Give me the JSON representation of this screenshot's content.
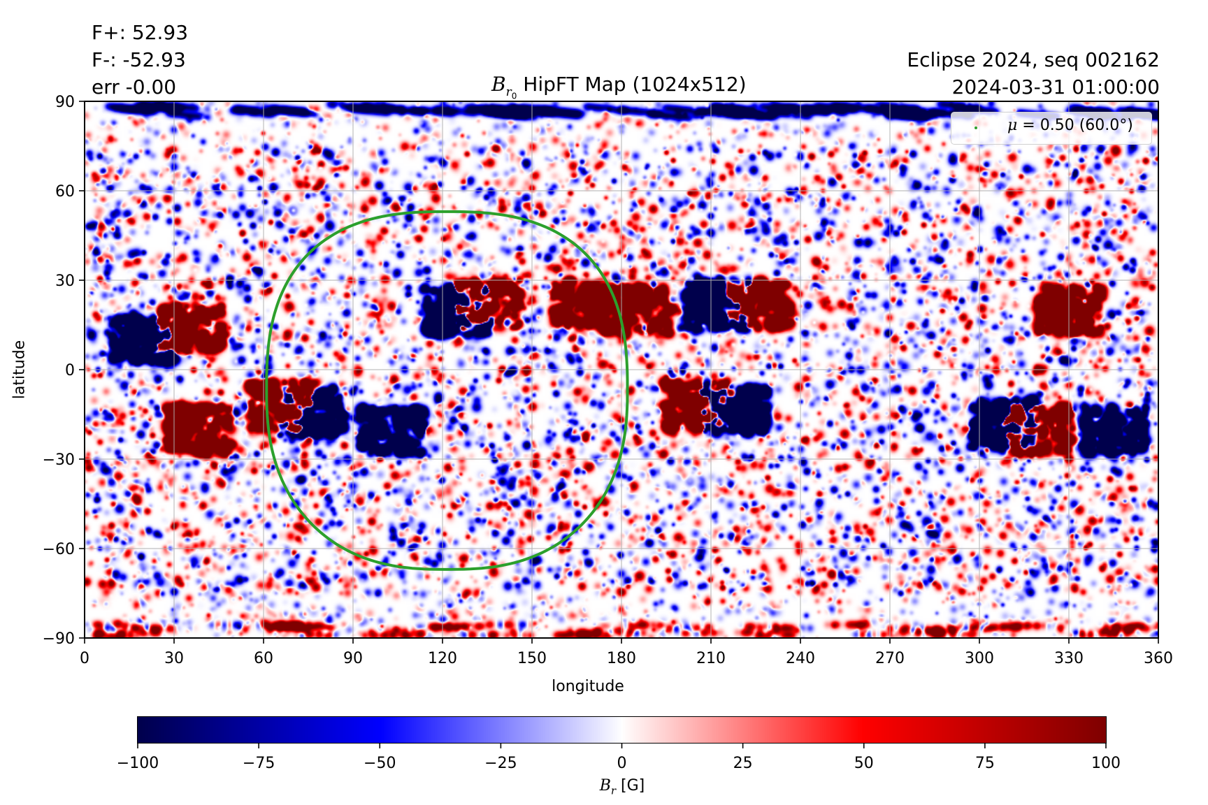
{
  "header": {
    "flux_positive": "F+: 52.93",
    "flux_negative": "F-: -52.93",
    "flux_error": "err -0.00",
    "title_main": "B",
    "title_sub": "r",
    "title_subsub": "0",
    "title_rest": " HipFT Map (1024x512)",
    "run_label": "Eclipse 2024, seq 002162",
    "timestamp": "2024-03-31 01:00:00"
  },
  "legend": {
    "symbol": "μ",
    "text": " = 0.50 (60.0°)",
    "marker_color": "#2ca02c"
  },
  "chart_data": [
    {
      "type": "heatmap",
      "title": "B_r0 HipFT Map (1024x512)",
      "xlabel": "longitude",
      "ylabel": "latitude",
      "xlim": [
        0,
        360
      ],
      "ylim": [
        -90,
        90
      ],
      "xticks": [
        0,
        30,
        60,
        90,
        120,
        150,
        180,
        210,
        240,
        270,
        300,
        330,
        360
      ],
      "yticks": [
        -90,
        -60,
        -30,
        0,
        30,
        60,
        90
      ],
      "ytick_labels": [
        "−90",
        "−60",
        "−30",
        "0",
        "30",
        "60",
        "90"
      ],
      "grid": true,
      "colormap": "seismic",
      "clim": [
        -100,
        100
      ],
      "resolution": "1024x512",
      "legend_position": "top-right",
      "contour": {
        "label": "μ = 0.50 (60.0°)",
        "color": "#2ca02c",
        "center_lon": 121,
        "center_lat": -6,
        "lon_range": [
          61,
          182
        ],
        "lat_range": [
          -67,
          53
        ]
      },
      "active_regions": [
        {
          "lon": 35,
          "lat": 14,
          "polarity": "positive"
        },
        {
          "lon": 38,
          "lat": -20,
          "polarity": "positive"
        },
        {
          "lon": 20,
          "lat": 10,
          "polarity": "negative"
        },
        {
          "lon": 76,
          "lat": -14,
          "polarity": "negative"
        },
        {
          "lon": 66,
          "lat": -12,
          "polarity": "positive"
        },
        {
          "lon": 135,
          "lat": 22,
          "polarity": "positive"
        },
        {
          "lon": 125,
          "lat": 20,
          "polarity": "negative"
        },
        {
          "lon": 103,
          "lat": -20,
          "polarity": "negative"
        },
        {
          "lon": 168,
          "lat": 22,
          "polarity": "positive"
        },
        {
          "lon": 185,
          "lat": 20,
          "polarity": "positive"
        },
        {
          "lon": 212,
          "lat": 22,
          "polarity": "negative"
        },
        {
          "lon": 226,
          "lat": 22,
          "polarity": "positive"
        },
        {
          "lon": 205,
          "lat": -12,
          "polarity": "positive"
        },
        {
          "lon": 218,
          "lat": -13,
          "polarity": "negative"
        },
        {
          "lon": 308,
          "lat": -18,
          "polarity": "negative"
        },
        {
          "lon": 320,
          "lat": -20,
          "polarity": "positive"
        },
        {
          "lon": 345,
          "lat": -20,
          "polarity": "negative"
        },
        {
          "lon": 330,
          "lat": 20,
          "polarity": "positive"
        }
      ]
    },
    {
      "type": "colorbar",
      "label_main": "B",
      "label_sub": "r",
      "label_unit": " [G]",
      "range": [
        -100,
        100
      ],
      "ticks": [
        -100,
        -75,
        -50,
        -25,
        0,
        25,
        50,
        75,
        100
      ],
      "tick_labels": [
        "−100",
        "−75",
        "−50",
        "−25",
        "0",
        "25",
        "50",
        "75",
        "100"
      ]
    }
  ]
}
